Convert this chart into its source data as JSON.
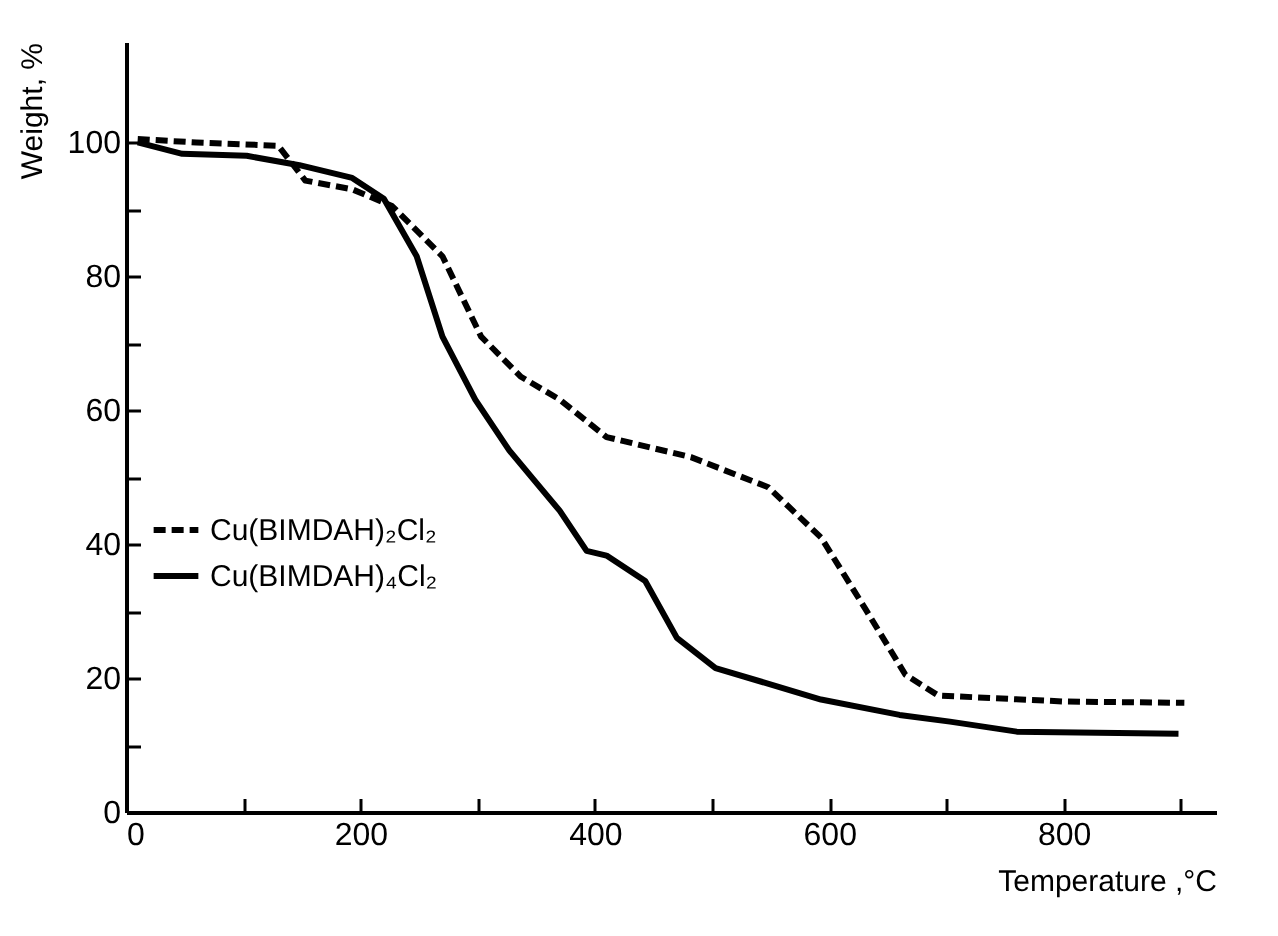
{
  "chart_data": {
    "type": "line",
    "xlabel": "Temperature ,°C",
    "ylabel": "Weight, %",
    "xlim": [
      0,
      930
    ],
    "ylim": [
      0,
      115
    ],
    "xticks": [
      0,
      {
        "value": 100,
        "label": null
      },
      200,
      {
        "value": 300,
        "label": null
      },
      400,
      {
        "value": 500,
        "label": null
      },
      600,
      {
        "value": 700,
        "label": null
      },
      800,
      {
        "value": 900,
        "label": null
      }
    ],
    "yticks": [
      0,
      {
        "value": 10,
        "label": null
      },
      20,
      {
        "value": 30,
        "label": null
      },
      40,
      {
        "value": 50,
        "label": null
      },
      60,
      {
        "value": 70,
        "label": null
      },
      80,
      {
        "value": 90,
        "label": null
      },
      100
    ],
    "grid": false,
    "legend": "bottom left",
    "marker": "none",
    "series": [
      {
        "name": "Cu(BIMDAH)₂Cl₂",
        "color": "#000000",
        "line_style": "dashed",
        "x": [
          10,
          60,
          130,
          153,
          193,
          227,
          270,
          303,
          337,
          370,
          410,
          482,
          548,
          593,
          632,
          665,
          693,
          800,
          903
        ],
        "values": [
          100.5,
          100,
          99.5,
          94.3,
          93,
          90.5,
          83,
          71,
          65,
          61.6,
          56,
          53,
          48.5,
          41,
          30,
          20.5,
          17.4,
          16.5,
          16.3
        ]
      },
      {
        "name": "Cu(BIMDAH)₄Cl₂",
        "color": "#000000",
        "line_style": "solid",
        "x": [
          10,
          48,
          103,
          148,
          193,
          220,
          248,
          270,
          298,
          327,
          348,
          370,
          393,
          410,
          443,
          470,
          503,
          593,
          660,
          703,
          760,
          898
        ],
        "values": [
          100,
          98.3,
          98,
          96.6,
          94.7,
          91.6,
          83,
          71,
          61.6,
          54,
          49.6,
          45,
          39,
          38.3,
          34.5,
          26,
          21.5,
          16.8,
          14.5,
          13.5,
          12,
          11.7
        ]
      }
    ]
  }
}
